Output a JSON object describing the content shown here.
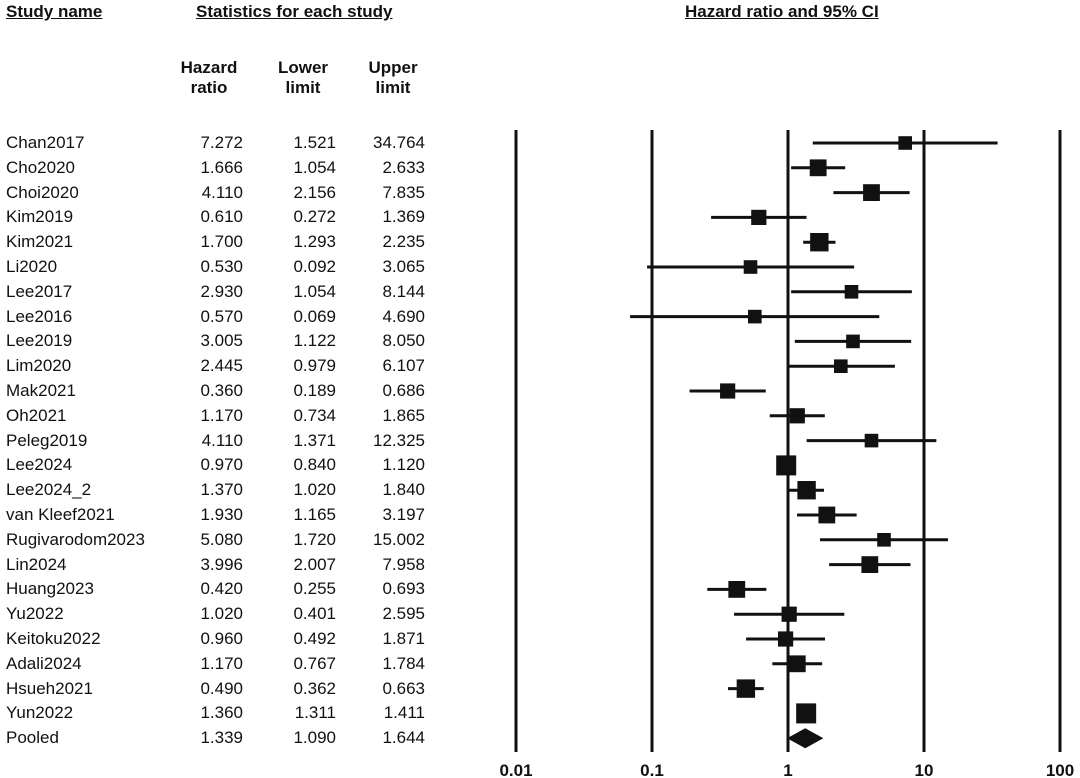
{
  "headers": {
    "study_name": "Study name",
    "statistics": "Statistics for each study",
    "plot": "Hazard ratio and 95% CI",
    "hr_line1": "Hazard",
    "hr_line2": "ratio",
    "lower_line1": "Lower",
    "lower_line2": "limit",
    "upper_line1": "Upper",
    "upper_line2": "limit"
  },
  "chart_data": {
    "type": "forest",
    "title": "Hazard ratio and 95% CI",
    "x_scale": "log",
    "xlim": [
      0.01,
      100
    ],
    "x_ticks": [
      0.01,
      0.1,
      1,
      10,
      100
    ],
    "x_tick_labels": [
      "0.01",
      "0.1",
      "1",
      "10",
      "100"
    ],
    "grid": "vertical lines at each tick",
    "studies": [
      {
        "name": "Chan2017",
        "hr": "7.272",
        "lower": "1.521",
        "upper": "34.764",
        "hr_v": 7.272,
        "lo_v": 1.521,
        "up_v": 34.764,
        "weight": 1
      },
      {
        "name": "Cho2020",
        "hr": "1.666",
        "lower": "1.054",
        "upper": "2.633",
        "hr_v": 1.666,
        "lo_v": 1.054,
        "up_v": 2.633,
        "weight": 3
      },
      {
        "name": "Choi2020",
        "hr": "4.110",
        "lower": "2.156",
        "upper": "7.835",
        "hr_v": 4.11,
        "lo_v": 2.156,
        "up_v": 7.835,
        "weight": 3
      },
      {
        "name": "Kim2019",
        "hr": "0.610",
        "lower": "0.272",
        "upper": "1.369",
        "hr_v": 0.61,
        "lo_v": 0.272,
        "up_v": 1.369,
        "weight": 2
      },
      {
        "name": "Kim2021",
        "hr": "1.700",
        "lower": "1.293",
        "upper": "2.235",
        "hr_v": 1.7,
        "lo_v": 1.293,
        "up_v": 2.235,
        "weight": 4
      },
      {
        "name": "Li2020",
        "hr": "0.530",
        "lower": "0.092",
        "upper": "3.065",
        "hr_v": 0.53,
        "lo_v": 0.092,
        "up_v": 3.065,
        "weight": 1
      },
      {
        "name": "Lee2017",
        "hr": "2.930",
        "lower": "1.054",
        "upper": "8.144",
        "hr_v": 2.93,
        "lo_v": 1.054,
        "up_v": 8.144,
        "weight": 1
      },
      {
        "name": "Lee2016",
        "hr": "0.570",
        "lower": "0.069",
        "upper": "4.690",
        "hr_v": 0.57,
        "lo_v": 0.069,
        "up_v": 4.69,
        "weight": 1
      },
      {
        "name": "Lee2019",
        "hr": "3.005",
        "lower": "1.122",
        "upper": "8.050",
        "hr_v": 3.005,
        "lo_v": 1.122,
        "up_v": 8.05,
        "weight": 1
      },
      {
        "name": "Lim2020",
        "hr": "2.445",
        "lower": "0.979",
        "upper": "6.107",
        "hr_v": 2.445,
        "lo_v": 0.979,
        "up_v": 6.107,
        "weight": 1
      },
      {
        "name": "Mak2021",
        "hr": "0.360",
        "lower": "0.189",
        "upper": "0.686",
        "hr_v": 0.36,
        "lo_v": 0.189,
        "up_v": 0.686,
        "weight": 2
      },
      {
        "name": "Oh2021",
        "hr": "1.170",
        "lower": "0.734",
        "upper": "1.865",
        "hr_v": 1.17,
        "lo_v": 0.734,
        "up_v": 1.865,
        "weight": 2
      },
      {
        "name": "Peleg2019",
        "hr": "4.110",
        "lower": "1.371",
        "upper": "12.325",
        "hr_v": 4.11,
        "lo_v": 1.371,
        "up_v": 12.325,
        "weight": 1
      },
      {
        "name": "Lee2024",
        "hr": "0.970",
        "lower": "0.840",
        "upper": "1.120",
        "hr_v": 0.97,
        "lo_v": 0.84,
        "up_v": 1.12,
        "weight": 5
      },
      {
        "name": "Lee2024_2",
        "hr": "1.370",
        "lower": "1.020",
        "upper": "1.840",
        "hr_v": 1.37,
        "lo_v": 1.02,
        "up_v": 1.84,
        "weight": 4
      },
      {
        "name": "van Kleef2021",
        "hr": "1.930",
        "lower": "1.165",
        "upper": "3.197",
        "hr_v": 1.93,
        "lo_v": 1.165,
        "up_v": 3.197,
        "weight": 3
      },
      {
        "name": "Rugivarodom2023",
        "hr": "5.080",
        "lower": "1.720",
        "upper": "15.002",
        "hr_v": 5.08,
        "lo_v": 1.72,
        "up_v": 15.002,
        "weight": 1
      },
      {
        "name": "Lin2024",
        "hr": "3.996",
        "lower": "2.007",
        "upper": "7.958",
        "hr_v": 3.996,
        "lo_v": 2.007,
        "up_v": 7.958,
        "weight": 3
      },
      {
        "name": "Huang2023",
        "hr": "0.420",
        "lower": "0.255",
        "upper": "0.693",
        "hr_v": 0.42,
        "lo_v": 0.255,
        "up_v": 0.693,
        "weight": 3
      },
      {
        "name": "Yu2022",
        "hr": "1.020",
        "lower": "0.401",
        "upper": "2.595",
        "hr_v": 1.02,
        "lo_v": 0.401,
        "up_v": 2.595,
        "weight": 2
      },
      {
        "name": "Keitoku2022",
        "hr": "0.960",
        "lower": "0.492",
        "upper": "1.871",
        "hr_v": 0.96,
        "lo_v": 0.492,
        "up_v": 1.871,
        "weight": 2
      },
      {
        "name": "Adali2024",
        "hr": "1.170",
        "lower": "0.767",
        "upper": "1.784",
        "hr_v": 1.17,
        "lo_v": 0.767,
        "up_v": 1.784,
        "weight": 3
      },
      {
        "name": "Hsueh2021",
        "hr": "0.490",
        "lower": "0.362",
        "upper": "0.663",
        "hr_v": 0.49,
        "lo_v": 0.362,
        "up_v": 0.663,
        "weight": 4
      },
      {
        "name": "Yun2022",
        "hr": "1.360",
        "lower": "1.311",
        "upper": "1.411",
        "hr_v": 1.36,
        "lo_v": 1.311,
        "up_v": 1.411,
        "weight": 5
      }
    ],
    "pooled": {
      "name": "Pooled",
      "hr": "1.339",
      "lower": "1.090",
      "upper": "1.644",
      "hr_v": 1.339,
      "lo_v": 1.09,
      "up_v": 1.644
    }
  }
}
